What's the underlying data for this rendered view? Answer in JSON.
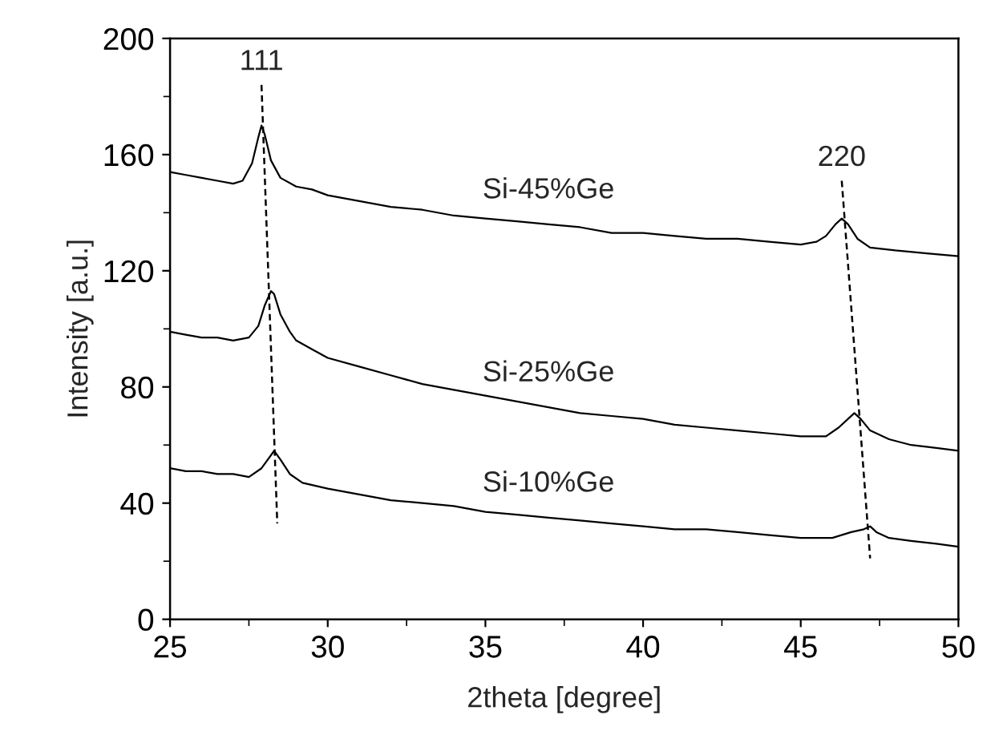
{
  "chart_data": {
    "type": "line",
    "xlabel": "2theta [degree]",
    "ylabel": "Intensity [a.u.]",
    "xlim": [
      25,
      50
    ],
    "xticks": [
      25,
      30,
      35,
      40,
      45,
      50
    ],
    "ylim": [
      0,
      200
    ],
    "yticks": [
      0,
      40,
      80,
      120,
      160,
      200
    ],
    "grid": false,
    "legend": false,
    "marker": "none",
    "series": [
      {
        "name": "Si-45%Ge",
        "color": "#000000",
        "x": [
          25,
          25.5,
          26,
          26.5,
          27,
          27.3,
          27.6,
          27.8,
          27.9,
          28.0,
          28.2,
          28.5,
          29,
          29.5,
          30,
          31,
          32,
          33,
          34,
          35,
          36,
          37,
          38,
          39,
          40,
          41,
          42,
          43,
          44,
          45,
          45.5,
          45.8,
          46.1,
          46.3,
          46.5,
          46.8,
          47.2,
          48,
          49,
          50
        ],
        "values": [
          154,
          153,
          152,
          151,
          150,
          151,
          157,
          166,
          170,
          167,
          158,
          152,
          149,
          148,
          146,
          144,
          142,
          141,
          139,
          138,
          137,
          136,
          135,
          133,
          133,
          132,
          131,
          131,
          130,
          129,
          130,
          132,
          136,
          138,
          136,
          131,
          128,
          127,
          126,
          125
        ]
      },
      {
        "name": "Si-25%Ge",
        "color": "#000000",
        "x": [
          25,
          25.5,
          26,
          26.5,
          27,
          27.5,
          27.8,
          28.0,
          28.2,
          28.3,
          28.5,
          28.8,
          29,
          29.5,
          30,
          31,
          32,
          33,
          34,
          35,
          36,
          37,
          38,
          39,
          40,
          41,
          42,
          43,
          44,
          45,
          45.8,
          46.2,
          46.5,
          46.7,
          46.9,
          47.2,
          47.8,
          48.5,
          49.3,
          50
        ],
        "values": [
          99,
          98,
          97,
          97,
          96,
          97,
          101,
          108,
          113,
          112,
          105,
          99,
          96,
          93,
          90,
          87,
          84,
          81,
          79,
          77,
          75,
          73,
          71,
          70,
          69,
          67,
          66,
          65,
          64,
          63,
          63,
          66,
          69,
          71,
          69,
          65,
          62,
          60,
          59,
          58
        ]
      },
      {
        "name": "Si-10%Ge",
        "color": "#000000",
        "x": [
          25,
          25.5,
          26,
          26.5,
          27,
          27.5,
          27.9,
          28.1,
          28.3,
          28.5,
          28.8,
          29.2,
          30,
          31,
          32,
          33,
          34,
          35,
          36,
          37,
          38,
          39,
          40,
          41,
          42,
          43,
          44,
          45,
          46,
          46.6,
          47.0,
          47.2,
          47.4,
          47.8,
          48.5,
          49.3,
          50
        ],
        "values": [
          52,
          51,
          51,
          50,
          50,
          49,
          52,
          55,
          58,
          55,
          50,
          47,
          45,
          43,
          41,
          40,
          39,
          37,
          36,
          35,
          34,
          33,
          32,
          31,
          31,
          30,
          29,
          28,
          28,
          30,
          31,
          32,
          30,
          28,
          27,
          26,
          25
        ]
      },
      {
        "name": "111",
        "color": "#000000",
        "line_style": "dashed",
        "x": [
          27.9,
          28.4
        ],
        "values": [
          184,
          33
        ]
      },
      {
        "name": "220",
        "color": "#000000",
        "line_style": "dashed",
        "x": [
          46.3,
          47.2
        ],
        "values": [
          151,
          21
        ]
      }
    ]
  }
}
